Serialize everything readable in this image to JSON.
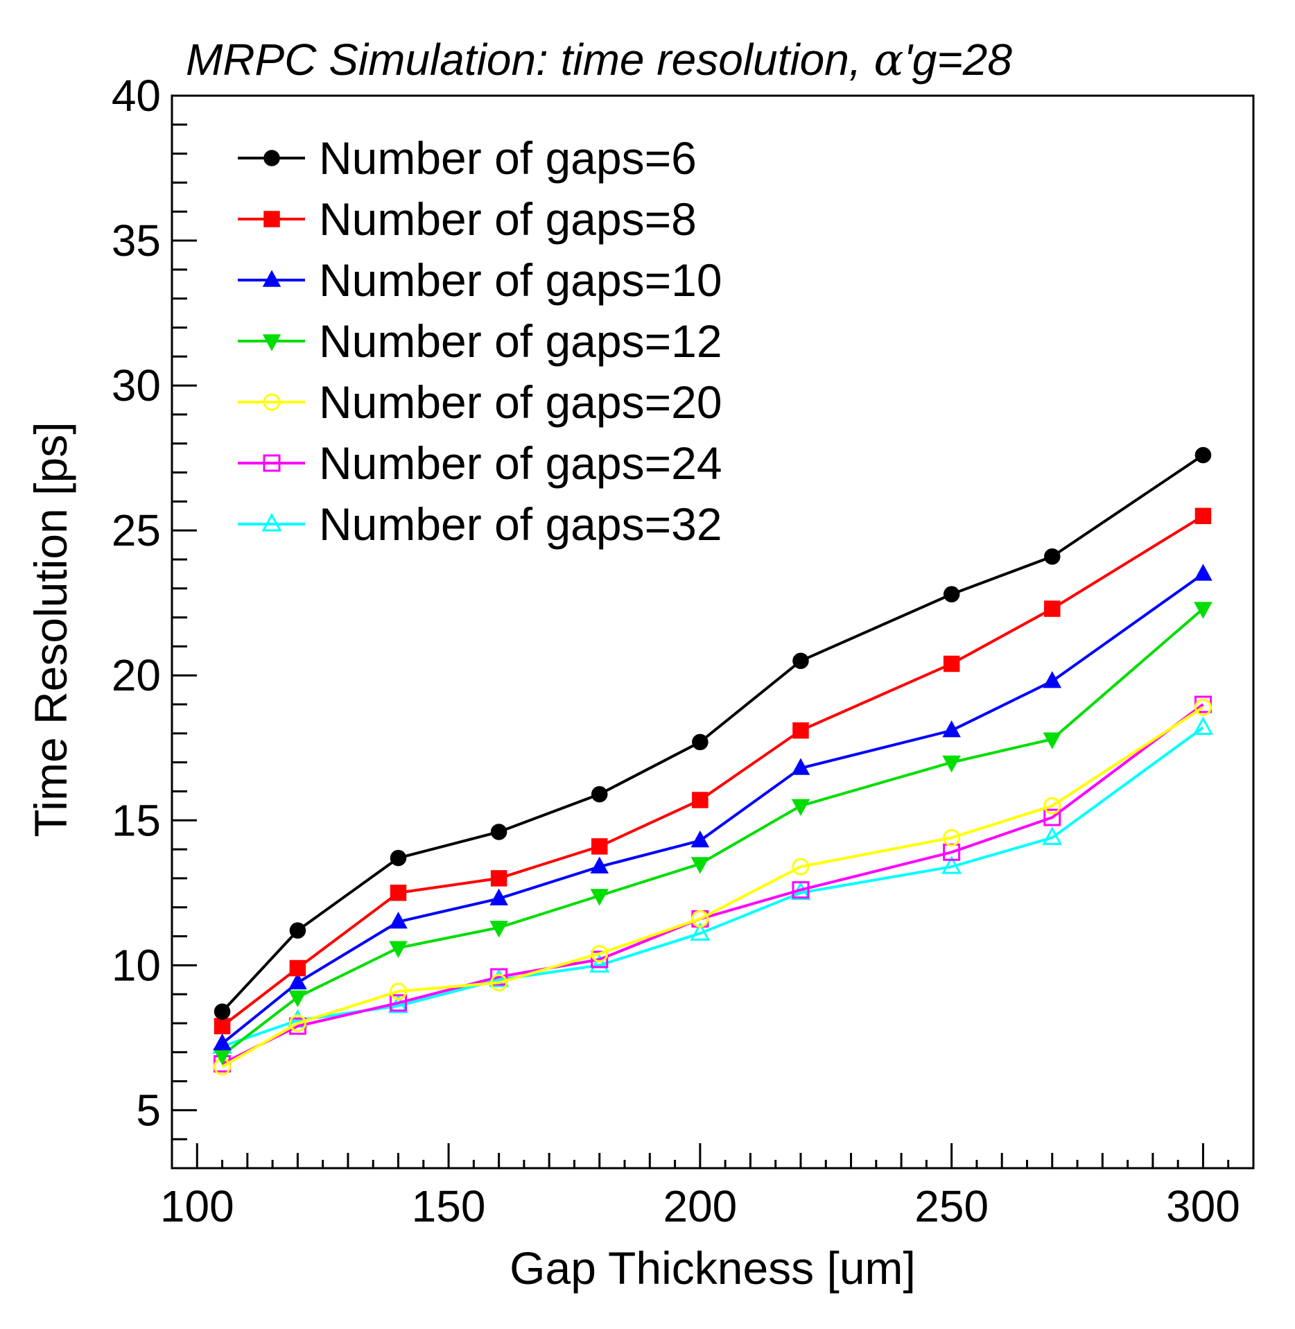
{
  "chart_data": {
    "type": "line",
    "title_prefix": "MRPC Simulation: time resolution, ",
    "title_symbol": "α",
    "title_suffix": "'g=28",
    "xlabel": "Gap Thickness [um]",
    "ylabel": "Time Resolution [ps]",
    "xlim": [
      95,
      310
    ],
    "ylim": [
      3,
      40
    ],
    "xticks": [
      100,
      150,
      200,
      250,
      300
    ],
    "xtick_labels": [
      "100",
      "150",
      "200",
      "250",
      "300"
    ],
    "yticks": [
      5,
      10,
      15,
      20,
      25,
      30,
      35,
      40
    ],
    "ytick_labels": [
      "5",
      "10",
      "15",
      "20",
      "25",
      "30",
      "35",
      "40"
    ],
    "legend_position": "top-left",
    "x": [
      105,
      120,
      140,
      160,
      180,
      200,
      220,
      250,
      270,
      300
    ],
    "series": [
      {
        "name": "Number of gaps=6",
        "color": "#000000",
        "marker": "circle-filled",
        "values": [
          8.4,
          11.2,
          13.7,
          14.6,
          15.9,
          17.7,
          20.5,
          22.8,
          24.1,
          27.6
        ]
      },
      {
        "name": "Number of gaps=8",
        "color": "#ff0000",
        "marker": "square-filled",
        "values": [
          7.9,
          9.9,
          12.5,
          13.0,
          14.1,
          15.7,
          18.1,
          20.4,
          22.3,
          25.5
        ]
      },
      {
        "name": "Number of gaps=10",
        "color": "#0000ff",
        "marker": "triangle-up-filled",
        "values": [
          7.3,
          9.4,
          11.5,
          12.3,
          13.4,
          14.3,
          16.8,
          18.1,
          19.8,
          23.5
        ]
      },
      {
        "name": "Number of gaps=12",
        "color": "#00dd00",
        "marker": "triangle-down-filled",
        "values": [
          6.9,
          8.9,
          10.6,
          11.3,
          12.4,
          13.5,
          15.5,
          17.0,
          17.8,
          22.3
        ]
      },
      {
        "name": "Number of gaps=20",
        "color": "#ffff00",
        "marker": "circle-open",
        "values": [
          6.5,
          8.0,
          9.1,
          9.4,
          10.4,
          11.6,
          13.4,
          14.4,
          15.5,
          18.9
        ]
      },
      {
        "name": "Number of gaps=24",
        "color": "#ff00ff",
        "marker": "square-open",
        "values": [
          6.6,
          7.9,
          8.7,
          9.6,
          10.2,
          11.6,
          12.6,
          13.9,
          15.1,
          19.0
        ]
      },
      {
        "name": "Number of gaps=32",
        "color": "#00ffff",
        "marker": "triangle-up-open",
        "values": [
          7.2,
          8.1,
          8.6,
          9.5,
          10.0,
          11.1,
          12.5,
          13.4,
          14.4,
          18.2
        ]
      }
    ]
  }
}
